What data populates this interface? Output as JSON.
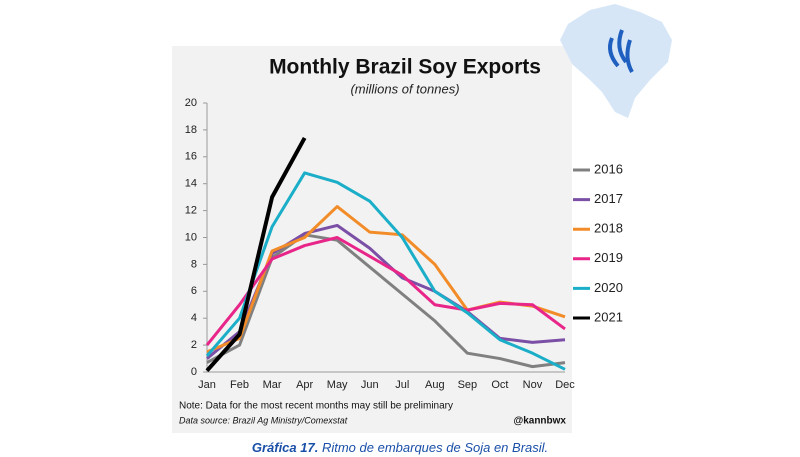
{
  "chart_data": {
    "type": "line",
    "title": "Monthly Brazil Soy Exports",
    "subtitle": "(millions of tonnes)",
    "categories": [
      "Jan",
      "Feb",
      "Mar",
      "Apr",
      "May",
      "Jun",
      "Jul",
      "Aug",
      "Sep",
      "Oct",
      "Nov",
      "Dec"
    ],
    "series": [
      {
        "name": "2016",
        "color": "#808080",
        "values": [
          0.7,
          2.0,
          8.5,
          10.2,
          9.8,
          7.8,
          5.8,
          3.8,
          1.4,
          1.0,
          0.4,
          0.7
        ]
      },
      {
        "name": "2017",
        "color": "#7b4fa6",
        "values": [
          1.0,
          3.0,
          8.8,
          10.3,
          10.9,
          9.2,
          7.0,
          6.0,
          4.5,
          2.5,
          2.2,
          2.4
        ]
      },
      {
        "name": "2018",
        "color": "#f28c28",
        "values": [
          1.5,
          2.5,
          9.0,
          10.0,
          12.3,
          10.4,
          10.2,
          8.0,
          4.6,
          5.2,
          4.9,
          4.1
        ]
      },
      {
        "name": "2019",
        "color": "#e8268a",
        "values": [
          2.0,
          5.0,
          8.4,
          9.4,
          10.0,
          8.6,
          7.2,
          5.0,
          4.6,
          5.1,
          5.0,
          3.2
        ]
      },
      {
        "name": "2020",
        "color": "#1aaec8",
        "values": [
          1.2,
          4.0,
          10.8,
          14.8,
          14.1,
          12.7,
          10.0,
          6.0,
          4.4,
          2.4,
          1.4,
          0.2
        ]
      },
      {
        "name": "2021",
        "color": "#000000",
        "values": [
          0.1,
          2.8,
          13.0,
          17.4,
          null,
          null,
          null,
          null,
          null,
          null,
          null,
          null
        ]
      }
    ],
    "ylim": [
      0,
      20
    ],
    "yticks": [
      0,
      2,
      4,
      6,
      8,
      10,
      12,
      14,
      16,
      18,
      20
    ],
    "grid": false,
    "legend": "right",
    "note": "Note: Data for the most recent months may still be preliminary",
    "source": "Data source: Brazil Ag Ministry/Comexstat",
    "credit": "@kannbwx"
  },
  "caption": {
    "label": "Gráfica 17.",
    "text": "Ritmo de embarques de Soja en Brasil."
  }
}
